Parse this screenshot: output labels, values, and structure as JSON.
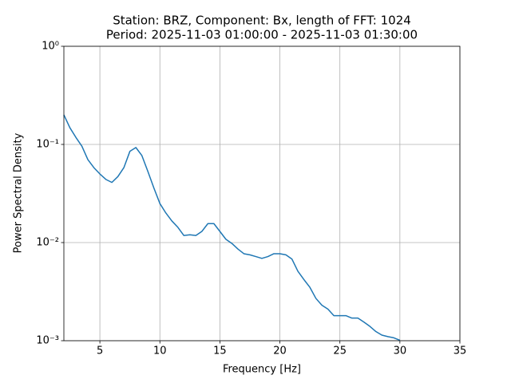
{
  "chart_data": {
    "type": "line",
    "title": "Station: BRZ, Component: Bx, length of FFT: 1024",
    "subtitle": "Period: 2025-11-03 01:00:00 - 2025-11-03 01:30:00",
    "x_label": "Frequency [Hz]",
    "y_label": "Power Spectral Density",
    "x": [
      2,
      2.5,
      3,
      3.5,
      4,
      4.5,
      5,
      5.5,
      6,
      6.5,
      7,
      7.5,
      8,
      8.5,
      9,
      9.5,
      10,
      10.5,
      11,
      11.5,
      12,
      12.5,
      13,
      13.5,
      14,
      14.5,
      15,
      15.5,
      16,
      16.5,
      17,
      17.5,
      18,
      18.5,
      19,
      19.5,
      20,
      20.5,
      21,
      21.5,
      22,
      22.5,
      23,
      23.5,
      24,
      24.5,
      25,
      25.5,
      26,
      26.5,
      27,
      27.5,
      28,
      28.5,
      29,
      29.5,
      30
    ],
    "series": [
      {
        "color": "#1f77b4",
        "values": [
          0.2,
          0.148,
          0.118,
          0.096,
          0.07,
          0.058,
          0.05,
          0.044,
          0.041,
          0.047,
          0.058,
          0.085,
          0.093,
          0.077,
          0.053,
          0.036,
          0.025,
          0.02,
          0.0166,
          0.0143,
          0.0118,
          0.012,
          0.0118,
          0.013,
          0.0156,
          0.0156,
          0.013,
          0.0108,
          0.0098,
          0.0086,
          0.0077,
          0.0075,
          0.0072,
          0.0069,
          0.0072,
          0.0077,
          0.0077,
          0.0075,
          0.0068,
          0.0051,
          0.0042,
          0.0035,
          0.0027,
          0.0023,
          0.0021,
          0.0018,
          0.0018,
          0.0018,
          0.0017,
          0.0017,
          0.00155,
          0.0014,
          0.00124,
          0.00114,
          0.0011,
          0.00107,
          0.00101
        ]
      }
    ],
    "xlim": [
      2,
      35
    ],
    "xticks": [
      5,
      10,
      15,
      20,
      25,
      30,
      35
    ],
    "ylim": [
      0.001,
      1
    ],
    "yscale": "log",
    "yticks": [
      {
        "value": 1,
        "label": "10⁰"
      },
      {
        "value": 0.1,
        "label": "10⁻¹"
      },
      {
        "value": 0.01,
        "label": "10⁻²"
      },
      {
        "value": 0.001,
        "label": "10⁻³"
      }
    ],
    "grid": true
  }
}
